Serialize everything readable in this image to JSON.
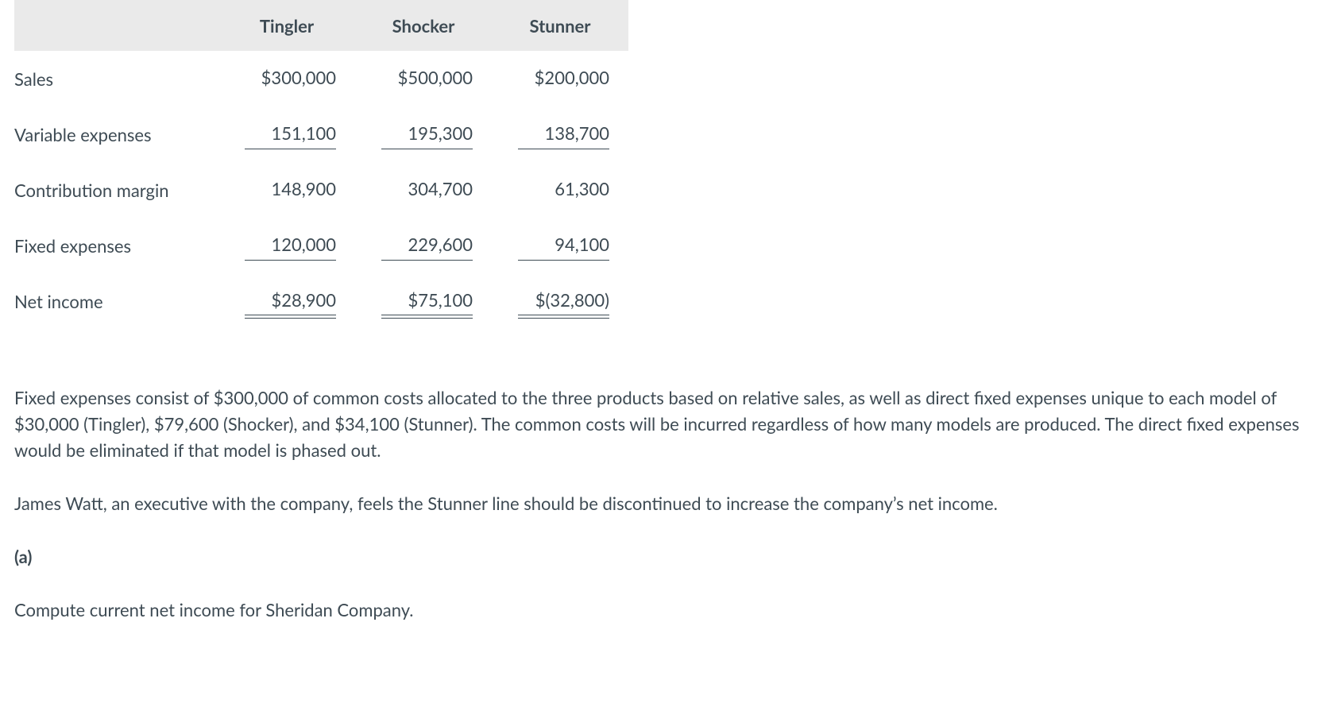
{
  "table": {
    "header_bg": "#eaeaea",
    "text_color": "#3e4b54",
    "columns": [
      "",
      "Tingler",
      "Shocker",
      "Stunner"
    ],
    "rows": [
      {
        "label": "Sales",
        "values": [
          "$300,000",
          "$500,000",
          "$200,000"
        ],
        "underline": false,
        "double": false
      },
      {
        "label": "Variable expenses",
        "values": [
          "151,100",
          "195,300",
          "138,700"
        ],
        "underline": true,
        "double": false
      },
      {
        "label": "Contribution margin",
        "values": [
          "148,900",
          "304,700",
          "61,300"
        ],
        "underline": false,
        "double": false
      },
      {
        "label": "Fixed expenses",
        "values": [
          "120,000",
          "229,600",
          "94,100"
        ],
        "underline": true,
        "double": false
      },
      {
        "label": "Net income",
        "values": [
          "$28,900",
          "$75,100",
          "$(32,800)"
        ],
        "underline": false,
        "double": true
      }
    ]
  },
  "paragraphs": {
    "p1": "Fixed expenses consist of $300,000 of common costs allocated to the three products based on relative sales, as well as direct fixed expenses unique to each model of $30,000 (Tingler), $79,600 (Shocker), and $34,100 (Stunner). The common costs will be incurred regardless of how many models are produced. The direct fixed expenses would be eliminated if that model is phased out.",
    "p2": "James Watt, an executive with the company, feels the Stunner line should be discontinued to increase the company’s net income.",
    "part_label": "(a)",
    "prompt": "Compute current net income for Sheridan Company."
  }
}
